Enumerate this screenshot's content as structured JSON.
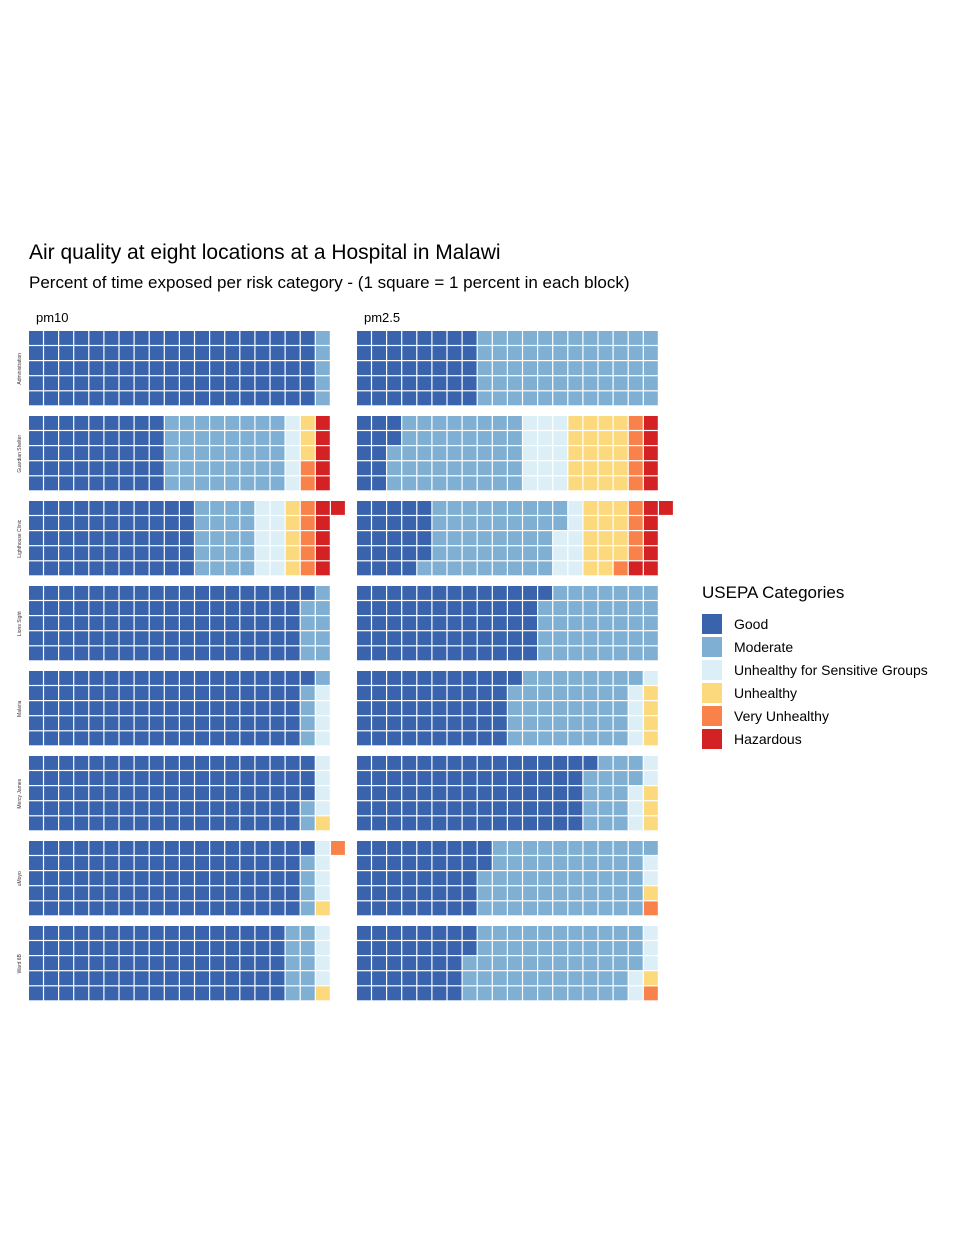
{
  "chart_data": {
    "type": "waffle",
    "title": "Air quality at eight locations at a Hospital in Malawi",
    "subtitle": "Percent of time exposed per risk category - (1 square = 1 percent in each block)",
    "facets": [
      "pm10",
      "pm2.5"
    ],
    "locations": [
      "Administration",
      "Guardian Shelter",
      "Lighthouse Clinic",
      "Lions Sight",
      "Malaria",
      "Mercy James",
      "uMoyo",
      "Ward 6B"
    ],
    "legend": {
      "title": "USEPA Categories",
      "position": "right",
      "categories": [
        {
          "label": "Good",
          "color": "#3A63AD"
        },
        {
          "label": "Moderate",
          "color": "#7FB0D4"
        },
        {
          "label": "Unhealthy for Sensitive Groups",
          "color": "#DCEFF6"
        },
        {
          "label": "Unhealthy",
          "color": "#FDD97E"
        },
        {
          "label": "Very Unhealthy",
          "color": "#F88249"
        },
        {
          "label": "Hazardous",
          "color": "#D42224"
        }
      ]
    },
    "rows_per_block": 5,
    "values": {
      "pm10": [
        [
          95,
          5,
          0,
          0,
          0,
          0
        ],
        [
          45,
          40,
          5,
          3,
          2,
          5
        ],
        [
          55,
          20,
          10,
          5,
          5,
          6
        ],
        [
          91,
          9,
          0,
          0,
          0,
          0
        ],
        [
          91,
          5,
          4,
          0,
          0,
          0
        ],
        [
          93,
          2,
          4,
          1,
          0,
          0
        ],
        [
          91,
          4,
          4,
          1,
          1,
          0
        ],
        [
          85,
          10,
          4,
          1,
          0,
          0
        ]
      ],
      "pm2.5": [
        [
          40,
          60,
          0,
          0,
          0,
          0
        ],
        [
          12,
          43,
          15,
          20,
          5,
          5
        ],
        [
          24,
          43,
          8,
          14,
          5,
          7
        ],
        [
          61,
          39,
          0,
          0,
          0,
          0
        ],
        [
          51,
          40,
          5,
          4,
          0,
          0
        ],
        [
          76,
          16,
          5,
          3,
          0,
          0
        ],
        [
          42,
          54,
          2,
          1,
          1,
          0
        ],
        [
          37,
          56,
          5,
          1,
          1,
          0
        ]
      ]
    }
  }
}
